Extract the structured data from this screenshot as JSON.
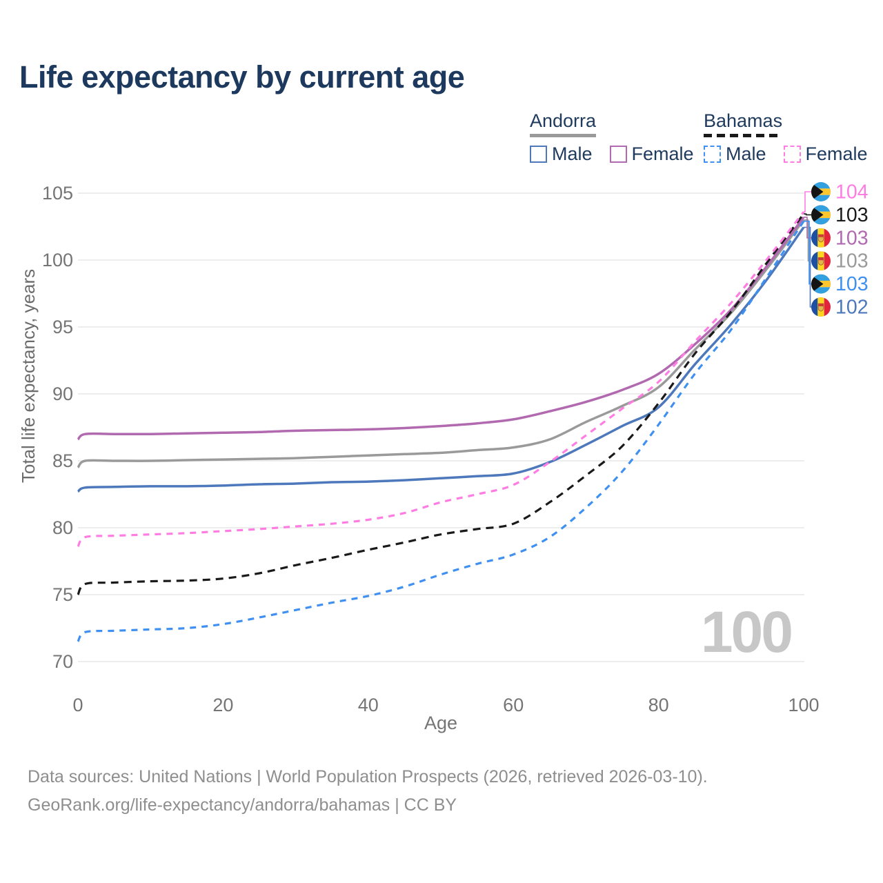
{
  "header": {
    "title": "Life expectancy by current age"
  },
  "legend": {
    "groups": [
      {
        "label": "Andorra",
        "line_style": "solid",
        "line_color": "#9a9a9a",
        "items": [
          {
            "label": "Male",
            "color": "#4d78bb",
            "dashed": false
          },
          {
            "label": "Female",
            "color": "#b169af",
            "dashed": false
          }
        ]
      },
      {
        "label": "Bahamas",
        "line_style": "dashed",
        "line_color": "#1a1a1a",
        "items": [
          {
            "label": "Male",
            "color": "#3f90f0",
            "dashed": true
          },
          {
            "label": "Female",
            "color": "#ff7de2",
            "dashed": true
          }
        ]
      }
    ]
  },
  "chart_data": {
    "type": "line",
    "title": "Life expectancy by current age",
    "xlabel": "Age",
    "ylabel": "Total life expectancy, years",
    "xlim": [
      0,
      100
    ],
    "ylim": [
      70,
      105
    ],
    "xticks": [
      0,
      20,
      40,
      60,
      80,
      100
    ],
    "yticks": [
      70,
      75,
      80,
      85,
      90,
      95,
      100,
      105
    ],
    "grid": "horizontal",
    "legend_position": "top-right",
    "age_counter": "100",
    "series": [
      {
        "id": "andorra-male",
        "name": "Andorra Male",
        "country": "Andorra",
        "sex": "Male",
        "color": "#4d78bb",
        "dash": null,
        "flag": "andorra",
        "end_label": "102",
        "label_order": 5,
        "points": [
          [
            0,
            82.7
          ],
          [
            1,
            83
          ],
          [
            5,
            83.05
          ],
          [
            10,
            83.1
          ],
          [
            15,
            83.1
          ],
          [
            20,
            83.15
          ],
          [
            25,
            83.25
          ],
          [
            30,
            83.3
          ],
          [
            35,
            83.4
          ],
          [
            40,
            83.45
          ],
          [
            45,
            83.55
          ],
          [
            50,
            83.7
          ],
          [
            55,
            83.85
          ],
          [
            60,
            84.05
          ],
          [
            65,
            84.9
          ],
          [
            70,
            86.2
          ],
          [
            75,
            87.6
          ],
          [
            80,
            89
          ],
          [
            85,
            92.2
          ],
          [
            90,
            95.2
          ],
          [
            95,
            98.6
          ],
          [
            100,
            102.45
          ]
        ]
      },
      {
        "id": "andorra-all",
        "name": "Andorra",
        "country": "Andorra",
        "sex": "All",
        "color": "#9a9a9a",
        "dash": null,
        "flag": "andorra",
        "end_label": "103",
        "label_order": 3,
        "points": [
          [
            0,
            84.5
          ],
          [
            1,
            85
          ],
          [
            5,
            85
          ],
          [
            10,
            85
          ],
          [
            15,
            85.05
          ],
          [
            20,
            85.1
          ],
          [
            25,
            85.15
          ],
          [
            30,
            85.2
          ],
          [
            35,
            85.3
          ],
          [
            40,
            85.4
          ],
          [
            45,
            85.5
          ],
          [
            50,
            85.6
          ],
          [
            55,
            85.8
          ],
          [
            60,
            86
          ],
          [
            65,
            86.6
          ],
          [
            70,
            87.9
          ],
          [
            75,
            89.1
          ],
          [
            80,
            90.5
          ],
          [
            85,
            93.3
          ],
          [
            90,
            96.05
          ],
          [
            95,
            99.4
          ],
          [
            100,
            103
          ]
        ]
      },
      {
        "id": "andorra-female",
        "name": "Andorra Female",
        "country": "Andorra",
        "sex": "Female",
        "color": "#b169af",
        "dash": null,
        "flag": "andorra",
        "end_label": "103",
        "label_order": 2,
        "points": [
          [
            0,
            86.6
          ],
          [
            1,
            87
          ],
          [
            5,
            87
          ],
          [
            10,
            87
          ],
          [
            15,
            87.05
          ],
          [
            20,
            87.1
          ],
          [
            25,
            87.15
          ],
          [
            30,
            87.25
          ],
          [
            35,
            87.3
          ],
          [
            40,
            87.35
          ],
          [
            45,
            87.45
          ],
          [
            50,
            87.6
          ],
          [
            55,
            87.8
          ],
          [
            60,
            88.1
          ],
          [
            65,
            88.7
          ],
          [
            70,
            89.4
          ],
          [
            75,
            90.3
          ],
          [
            80,
            91.5
          ],
          [
            85,
            93.7
          ],
          [
            90,
            96.3
          ],
          [
            95,
            99.6
          ],
          [
            100,
            103.2
          ]
        ]
      },
      {
        "id": "bahamas-male",
        "name": "Bahamas Male",
        "country": "Bahamas",
        "sex": "Male",
        "color": "#3f90f0",
        "dash": "9 8",
        "flag": "bahamas",
        "end_label": "103",
        "label_order": 4,
        "points": [
          [
            0,
            71.5
          ],
          [
            1,
            72.2
          ],
          [
            5,
            72.3
          ],
          [
            10,
            72.4
          ],
          [
            15,
            72.5
          ],
          [
            20,
            72.8
          ],
          [
            25,
            73.3
          ],
          [
            30,
            73.85
          ],
          [
            35,
            74.4
          ],
          [
            40,
            74.9
          ],
          [
            45,
            75.6
          ],
          [
            50,
            76.5
          ],
          [
            55,
            77.3
          ],
          [
            60,
            78
          ],
          [
            65,
            79.3
          ],
          [
            70,
            81.5
          ],
          [
            75,
            84.2
          ],
          [
            80,
            87.7
          ],
          [
            85,
            91.5
          ],
          [
            90,
            94.8
          ],
          [
            95,
            98.8
          ],
          [
            100,
            102.9
          ]
        ]
      },
      {
        "id": "bahamas-all",
        "name": "Bahamas",
        "country": "Bahamas",
        "sex": "All",
        "color": "#1a1a1a",
        "dash": "11 8",
        "flag": "bahamas",
        "end_label": "103",
        "label_order": 1,
        "points": [
          [
            0,
            75
          ],
          [
            1,
            75.8
          ],
          [
            5,
            75.9
          ],
          [
            10,
            76
          ],
          [
            15,
            76.05
          ],
          [
            20,
            76.2
          ],
          [
            25,
            76.6
          ],
          [
            30,
            77.2
          ],
          [
            35,
            77.75
          ],
          [
            40,
            78.35
          ],
          [
            45,
            78.9
          ],
          [
            50,
            79.5
          ],
          [
            55,
            79.9
          ],
          [
            60,
            80.3
          ],
          [
            65,
            81.9
          ],
          [
            70,
            83.9
          ],
          [
            75,
            86.1
          ],
          [
            80,
            89.3
          ],
          [
            85,
            93
          ],
          [
            90,
            96.15
          ],
          [
            95,
            99.85
          ],
          [
            100,
            103.45
          ]
        ]
      },
      {
        "id": "bahamas-female",
        "name": "Bahamas Female",
        "country": "Bahamas",
        "sex": "Female",
        "color": "#ff7de2",
        "dash": "9 8",
        "flag": "bahamas",
        "end_label": "104",
        "label_order": 0,
        "points": [
          [
            0,
            78.6
          ],
          [
            1,
            79.3
          ],
          [
            5,
            79.4
          ],
          [
            10,
            79.5
          ],
          [
            15,
            79.6
          ],
          [
            20,
            79.75
          ],
          [
            25,
            79.9
          ],
          [
            30,
            80.1
          ],
          [
            35,
            80.3
          ],
          [
            40,
            80.6
          ],
          [
            45,
            81.1
          ],
          [
            50,
            81.9
          ],
          [
            55,
            82.5
          ],
          [
            60,
            83.2
          ],
          [
            65,
            84.9
          ],
          [
            70,
            86.9
          ],
          [
            75,
            88.9
          ],
          [
            80,
            90.9
          ],
          [
            85,
            93.9
          ],
          [
            90,
            96.8
          ],
          [
            95,
            100.1
          ],
          [
            100,
            103.6
          ]
        ]
      }
    ],
    "colors": {
      "grid": "#e7e7e7",
      "tick_text": "#757575",
      "axis_title": "#6b6b6b",
      "watermark": "#c7c7c7",
      "flag_bahamas_blue": "#33a0df",
      "flag_bahamas_gold": "#ffc72c",
      "flag_andorra_blue": "#1d4fa3",
      "flag_andorra_yellow": "#ffd520",
      "flag_andorra_red": "#e3243b"
    }
  },
  "watermark": {
    "age_label": "100"
  },
  "footer": {
    "line1": "Data sources: United Nations | World Population Prospects (2026, retrieved 2026-03-10).",
    "line2": "GeoRank.org/life-expectancy/andorra/bahamas | CC BY"
  }
}
